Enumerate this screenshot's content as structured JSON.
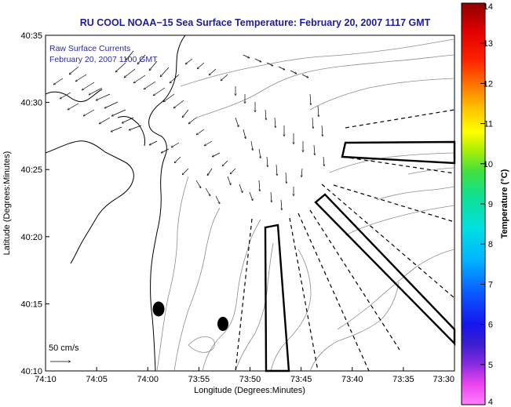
{
  "chart_data": {
    "type": "vector_map",
    "title": "RU COOL  NOAA−15  Sea Surface Temperature:  February 20, 2007 1117 GMT",
    "legend": {
      "line1": "Raw Surface Currents",
      "line2": "February 20, 2007 1100 GMT"
    },
    "scale_label": "50 cm/s",
    "xlabel": "Longitude (Degrees:Minutes)",
    "ylabel": "Latitude (Degrees:Minutes)",
    "x_ticks": [
      "74:10",
      "74:05",
      "74:00",
      "73:55",
      "73:50",
      "73:45",
      "73:40",
      "73:35",
      "73:30"
    ],
    "y_ticks": [
      "40:10",
      "40:15",
      "40:20",
      "40:25",
      "40:30",
      "40:35"
    ],
    "colorbar": {
      "label": "Temperature (°C)",
      "min": 4,
      "max": 14,
      "ticks": [
        "4",
        "5",
        "6",
        "7",
        "8",
        "9",
        "10",
        "11",
        "12",
        "13",
        "14"
      ]
    },
    "colors": {
      "title": "#1c1c9c",
      "legend": "#2a2aa0",
      "coast": "#000000",
      "contour": "#8c8c8c",
      "arrow": "#000000"
    }
  }
}
